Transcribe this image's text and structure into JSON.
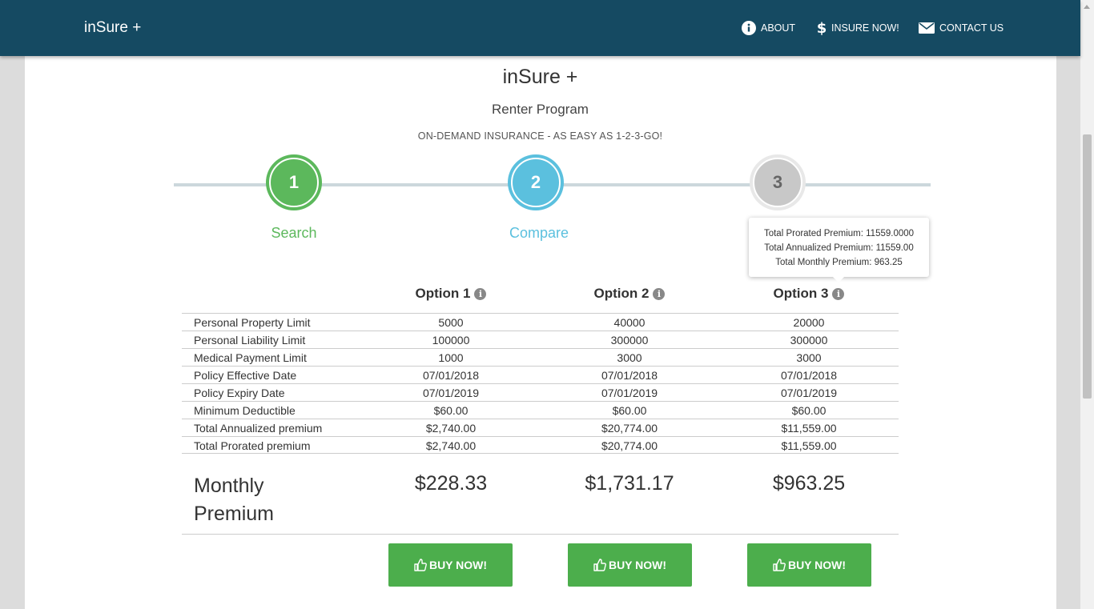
{
  "nav": {
    "brand": "inSure +",
    "items": [
      {
        "label": "ABOUT",
        "icon": "info-circle-icon"
      },
      {
        "label": "INSURE NOW!",
        "icon": "dollar-icon"
      },
      {
        "label": "CONTACT US",
        "icon": "envelope-icon"
      }
    ]
  },
  "header": {
    "title": "inSure +",
    "subtitle": "Renter Program",
    "tagline": "ON-DEMAND INSURANCE - AS EASY AS 1-2-3-GO!"
  },
  "steps": [
    {
      "number": "1",
      "label": "Search",
      "color": "#5cb85c"
    },
    {
      "number": "2",
      "label": "Compare",
      "color": "#5bc0de"
    },
    {
      "number": "3",
      "label": "",
      "color": "#c8c8c8"
    }
  ],
  "tooltip": {
    "line1": "Total Prorated Premium: 11559.0000",
    "line2": "Total Annualized Premium: 11559.00",
    "line3": "Total Monthly Premium: 963.25"
  },
  "options": [
    "Option 1",
    "Option 2",
    "Option 3"
  ],
  "rows": [
    {
      "label": "Personal Property Limit",
      "values": [
        "5000",
        "40000",
        "20000"
      ]
    },
    {
      "label": "Personal Liability Limit",
      "values": [
        "100000",
        "300000",
        "300000"
      ]
    },
    {
      "label": "Medical Payment Limit",
      "values": [
        "1000",
        "3000",
        "3000"
      ]
    },
    {
      "label": "Policy Effective Date",
      "values": [
        "07/01/2018",
        "07/01/2018",
        "07/01/2018"
      ]
    },
    {
      "label": "Policy Expiry Date",
      "values": [
        "07/01/2019",
        "07/01/2019",
        "07/01/2019"
      ]
    },
    {
      "label": "Minimum Deductible",
      "values": [
        "$60.00",
        "$60.00",
        "$60.00"
      ]
    },
    {
      "label": "Total Annualized premium",
      "values": [
        "$2,740.00",
        "$20,774.00",
        "$11,559.00"
      ]
    },
    {
      "label": "Total Prorated premium",
      "values": [
        "$2,740.00",
        "$20,774.00",
        "$11,559.00"
      ]
    }
  ],
  "monthly": {
    "label_line1": "Monthly",
    "label_line2": "Premium",
    "values": [
      "$228.33",
      "$1,731.17",
      "$963.25"
    ]
  },
  "buy_label": "BUY NOW!",
  "colors": {
    "navbar": "#154a62",
    "success": "#4cae4c",
    "info": "#5bc0de"
  }
}
